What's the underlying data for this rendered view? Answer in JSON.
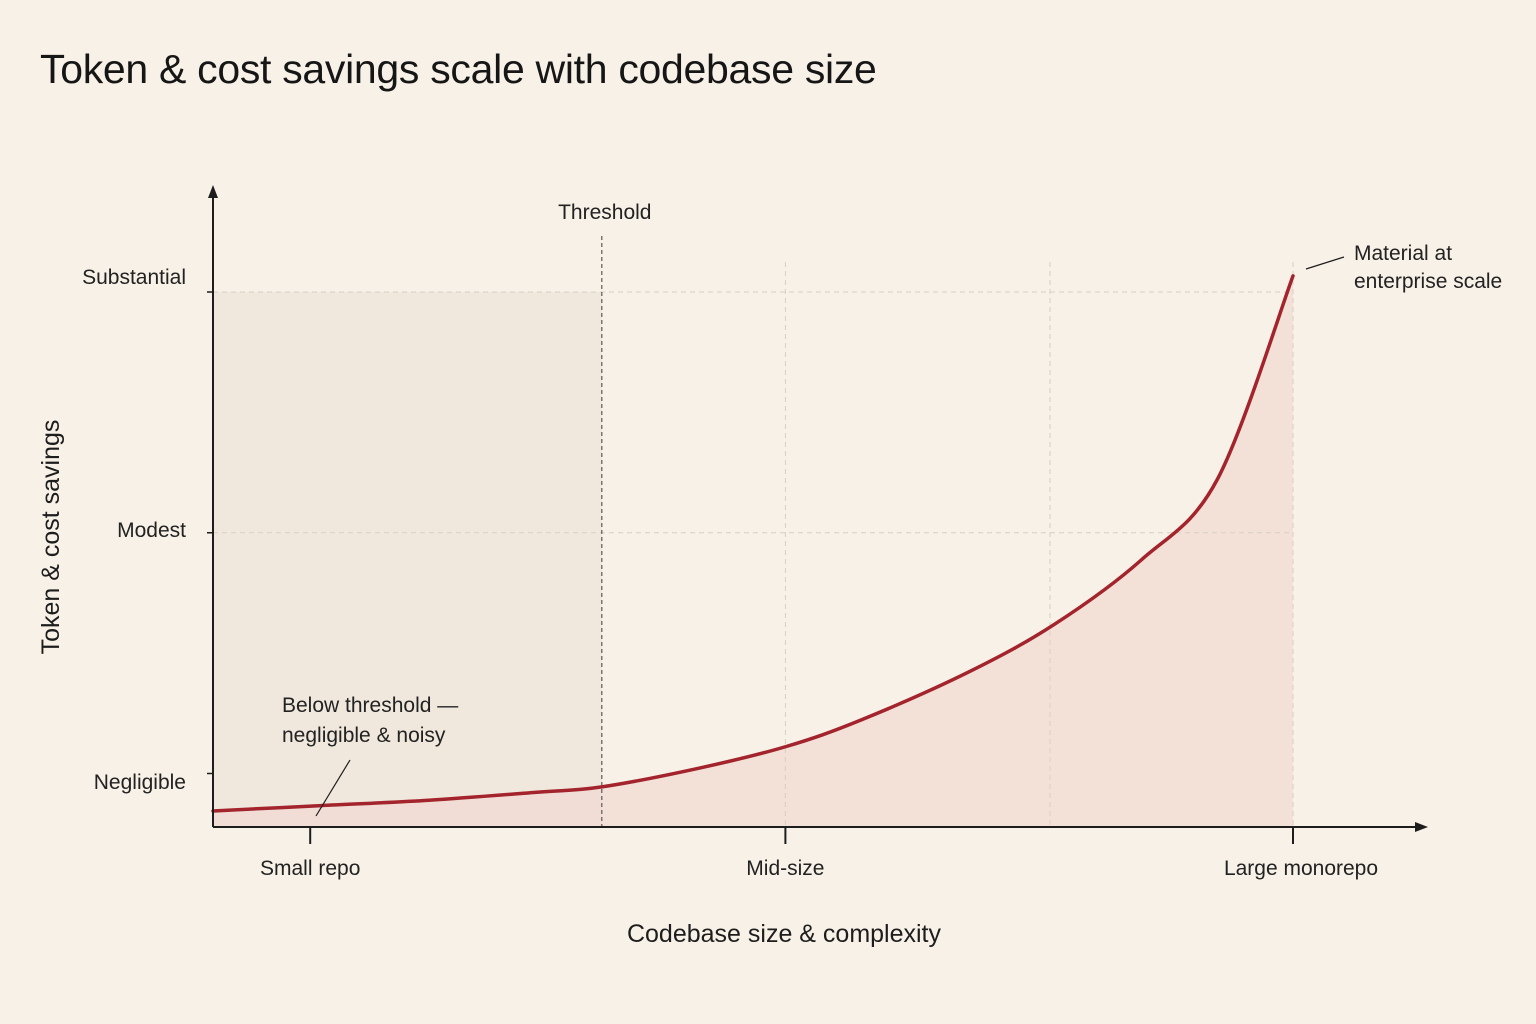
{
  "title": "Token & cost savings scale with codebase size",
  "colors": {
    "background": "#f8f1e7",
    "curve": "#a3242c",
    "area_fill": "#f1d9d2",
    "below_threshold_shade": "#efe6db",
    "grid": "#d8cfc3",
    "axis": "#1d1d1d"
  },
  "chart_data": {
    "type": "area",
    "title": "Token & cost savings scale with codebase size",
    "xlabel": "Codebase size & complexity",
    "ylabel": "Token & cost savings",
    "x_ticks": [
      "Small repo",
      "Mid-size",
      "Large monorepo"
    ],
    "y_ticks": [
      "Negligible",
      "Modest",
      "Substantial"
    ],
    "x_tick_positions": [
      0.09,
      0.53,
      1.0
    ],
    "y_tick_positions": [
      0.1,
      0.55,
      1.0
    ],
    "xlim": [
      0,
      1.2
    ],
    "ylim": [
      0,
      1.05
    ],
    "grid": true,
    "series": [
      {
        "points": [
          {
            "x": 0.0,
            "y": 0.03
          },
          {
            "x": 0.1,
            "y": 0.04
          },
          {
            "x": 0.2,
            "y": 0.05
          },
          {
            "x": 0.3,
            "y": 0.065
          },
          {
            "x": 0.36,
            "y": 0.075
          },
          {
            "x": 0.45,
            "y": 0.11
          },
          {
            "x": 0.53,
            "y": 0.15
          },
          {
            "x": 0.6,
            "y": 0.2
          },
          {
            "x": 0.7,
            "y": 0.29
          },
          {
            "x": 0.78,
            "y": 0.38
          },
          {
            "x": 0.86,
            "y": 0.5
          },
          {
            "x": 0.93,
            "y": 0.65
          },
          {
            "x": 1.0,
            "y": 1.03
          }
        ]
      }
    ],
    "threshold": {
      "label": "Threshold",
      "x": 0.36
    },
    "annotations": [
      {
        "text_lines": [
          "Below threshold —",
          "negligible & noisy"
        ],
        "point_x": 0.1
      },
      {
        "text_lines": [
          "Material at",
          "enterprise scale"
        ],
        "point_x": 1.0
      }
    ]
  }
}
